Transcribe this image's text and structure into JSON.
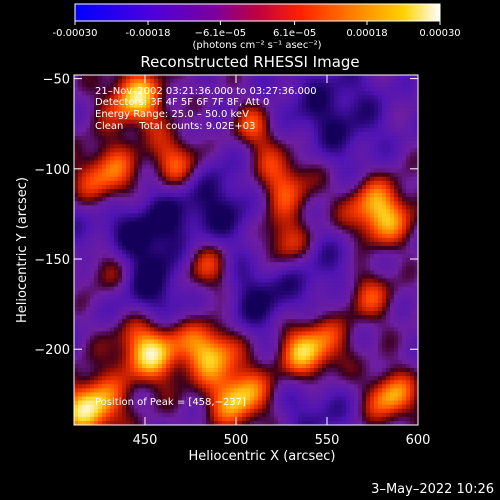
{
  "chart_data": {
    "type": "heatmap",
    "title": "Reconstructed RHESSI Image",
    "xlabel": "Heliocentric X (arcsec)",
    "ylabel": "Heliocentric Y (arcsec)",
    "xlim": [
      411,
      600
    ],
    "ylim": [
      -242,
      -48
    ],
    "x_ticks": [
      450,
      500,
      550,
      600
    ],
    "y_ticks": [
      -50,
      -100,
      -150,
      -200
    ],
    "x_tick_labels": [
      "450",
      "500",
      "550",
      "600"
    ],
    "y_tick_labels": [
      "−50",
      "−100",
      "−150",
      "−200"
    ],
    "colorbar": {
      "range": [
        -0.0003,
        0.0003
      ],
      "ticks": [
        -0.0003,
        -0.00018,
        -6.1e-05,
        6.1e-05,
        0.00018,
        0.0003
      ],
      "tick_labels": [
        "-0.00030",
        "-0.00018",
        "−6.1e−05",
        "6.1e−05",
        "0.00018",
        "0.00030"
      ],
      "unit_label": "(photons cm⁻² s⁻¹ asec⁻²)",
      "colors": [
        "#0000ff",
        "#6a00c8",
        "#9a1a50",
        "#ff2a00",
        "#ff8a00",
        "#ffd000",
        "#ffffff"
      ]
    },
    "grid": false,
    "annotations": {
      "time_range": "21–Nov–2002 03:21:36.000 to 03:27:36.000",
      "detectors": "Detectors: 3F 4F 5F 6F 7F 8F, Att 0",
      "energy": "Energy Range: 25.0 – 50.0 keV",
      "method": "Clean     Total counts: 9.02E+03",
      "peak": "Position of Peak = [458,−237]"
    }
  },
  "footer": {
    "date": "3–May–2022 10:26"
  }
}
